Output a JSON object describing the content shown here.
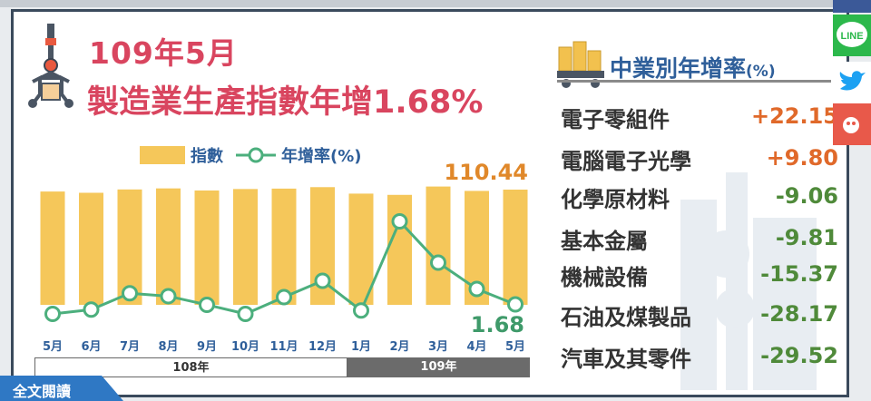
{
  "title": {
    "line1": "109年5月",
    "line2": "製造業生產指數年增1.68%"
  },
  "legend": {
    "index_label": "指數",
    "rate_label": "年增率(%)"
  },
  "callouts": {
    "latest_index": "110.44",
    "latest_rate": "1.68"
  },
  "periods": {
    "year1": "108年",
    "year2": "109年"
  },
  "read_full": "全文閱讀",
  "panel": {
    "title": "中業別年增率",
    "unit": "(%)",
    "industries": [
      {
        "name": "電子零組件",
        "value": "+22.15"
      },
      {
        "name": "電腦電子光學",
        "value": "+9.80"
      },
      {
        "name": "化學原材料",
        "value": "-9.06"
      },
      {
        "name": "基本金屬",
        "value": "-9.81"
      },
      {
        "name": "機械設備",
        "value": "-15.37"
      },
      {
        "name": "石油及煤製品",
        "value": "-28.17"
      },
      {
        "name": "汽車及其零件",
        "value": "-29.52"
      }
    ]
  },
  "social": {
    "line_label": "LINE"
  },
  "colors": {
    "title": "#d9455f",
    "bar": "#f5c75a",
    "line": "#4caf7d",
    "accent_blue": "#2f5f9a",
    "positive": "#e0692a",
    "negative": "#4f8a3a"
  },
  "chart_data": {
    "type": "bar",
    "categories": [
      "5月",
      "6月",
      "7月",
      "8月",
      "9月",
      "10月",
      "11月",
      "12月",
      "1月",
      "2月",
      "3月",
      "4月",
      "5月"
    ],
    "series": [
      {
        "name": "指數",
        "type": "bar",
        "values": [
          108.6,
          107.4,
          110.6,
          111.6,
          109.6,
          111.0,
          111.4,
          112.8,
          106.6,
          105.4,
          113.4,
          109.2,
          110.44
        ]
      },
      {
        "name": "年增率(%)",
        "type": "line",
        "values": [
          -0.3,
          0.6,
          4.0,
          3.4,
          1.6,
          -0.3,
          3.2,
          6.6,
          0.4,
          19.0,
          10.4,
          4.9,
          1.68
        ]
      }
    ],
    "value_labels": {
      "last_index": "110.44",
      "last_rate": "1.68"
    },
    "xlabel": "",
    "ylabel": ""
  }
}
